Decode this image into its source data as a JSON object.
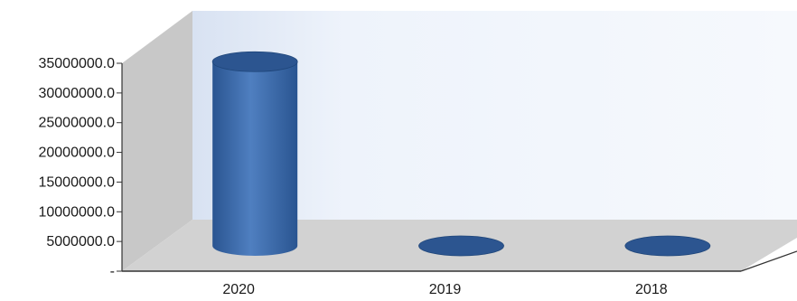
{
  "chart_data": {
    "type": "bar",
    "style": "3d-cylinder",
    "title": "",
    "xlabel": "",
    "ylabel": "",
    "categories": [
      "2020",
      "2019",
      "2018"
    ],
    "values": [
      31000000,
      0,
      0
    ],
    "ylim": [
      0,
      35000000
    ],
    "y_ticks": [
      0,
      5000000,
      10000000,
      15000000,
      20000000,
      25000000,
      30000000,
      35000000
    ],
    "y_tick_labels": [
      "-",
      "5000000.0",
      "10000000.0",
      "15000000.0",
      "20000000.0",
      "25000000.0",
      "30000000.0",
      "35000000.0"
    ],
    "grid": false,
    "legend": "none",
    "colors": {
      "bar": "#2a5591",
      "bar_light": "#4f7fc0",
      "bar_top": "#2c5590",
      "back_wall": "#eef3fb",
      "side_wall": "#c8c8c8",
      "floor": "#d2d2d2",
      "axis": "#333333"
    }
  }
}
